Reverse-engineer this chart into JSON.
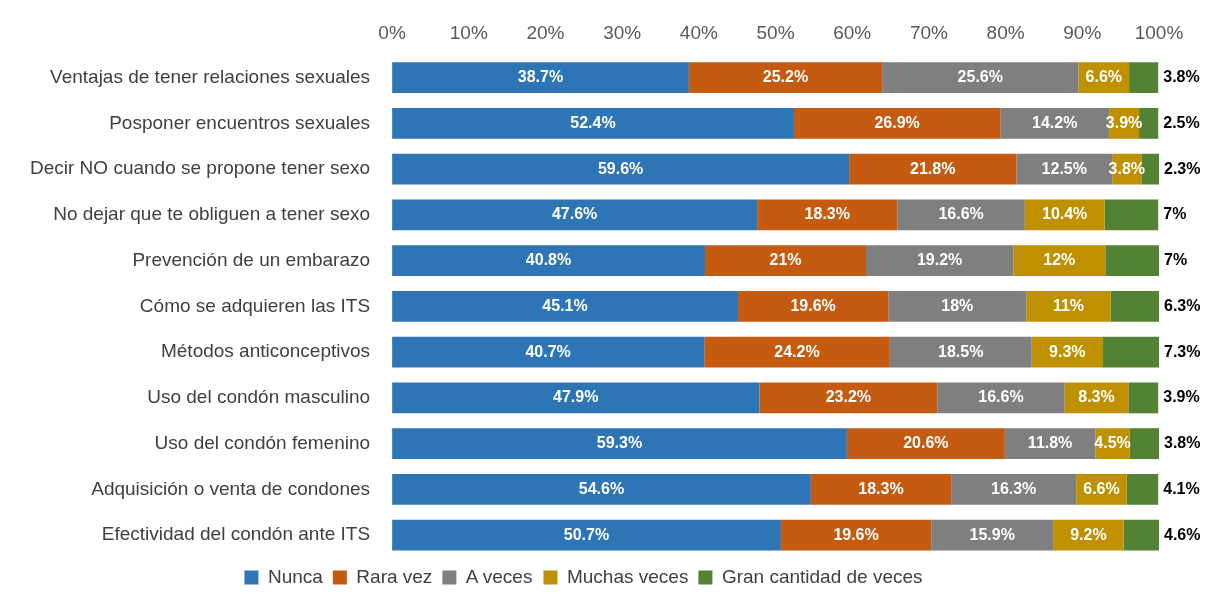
{
  "chart_data": {
    "type": "bar",
    "orientation": "horizontal",
    "stacked": true,
    "categories": [
      "Ventajas de tener relaciones sexuales",
      "Posponer encuentros sexuales",
      "Decir NO cuando se propone tener sexo",
      "No dejar que te obliguen a tener sexo",
      "Prevención de un embarazo",
      "Cómo se adquieren las ITS",
      "Métodos anticonceptivos",
      "Uso del condón masculino",
      "Uso del condón femenino",
      "Adquisición o venta de condones",
      "Efectividad del condón ante ITS"
    ],
    "series": [
      {
        "name": "Nunca",
        "color": "#2e75b6",
        "values": [
          38.7,
          52.4,
          59.6,
          47.6,
          40.8,
          45.1,
          40.7,
          47.9,
          59.3,
          54.6,
          50.7
        ],
        "value_labels": [
          "38.7%",
          "52.4%",
          "59.6%",
          "47.6%",
          "40.8%",
          "45.1%",
          "40.7%",
          "47.9%",
          "59.3%",
          "54.6%",
          "50.7%"
        ]
      },
      {
        "name": "Rara vez",
        "color": "#c55a11",
        "values": [
          25.2,
          26.9,
          21.8,
          18.3,
          21,
          19.6,
          24.2,
          23.2,
          20.6,
          18.3,
          19.6
        ],
        "value_labels": [
          "25.2%",
          "26.9%",
          "21.8%",
          "18.3%",
          "21%",
          "19.6%",
          "24.2%",
          "23.2%",
          "20.6%",
          "18.3%",
          "19.6%"
        ]
      },
      {
        "name": "A veces",
        "color": "#7f7f7f",
        "values": [
          25.6,
          14.2,
          12.5,
          16.6,
          19.2,
          18,
          18.5,
          16.6,
          11.8,
          16.3,
          15.9
        ],
        "value_labels": [
          "25.6%",
          "14.2%",
          "12.5%",
          "16.6%",
          "19.2%",
          "18%",
          "18.5%",
          "16.6%",
          "11.8%",
          "16.3%",
          "15.9%"
        ]
      },
      {
        "name": "Muchas veces",
        "color": "#bf9000",
        "values": [
          6.6,
          3.9,
          3.8,
          10.4,
          12,
          11,
          9.3,
          8.3,
          4.5,
          6.6,
          9.2
        ],
        "value_labels": [
          "6.6%",
          "3.9%",
          "3.8%",
          "10.4%",
          "12%",
          "11%",
          "9.3%",
          "8.3%",
          "4.5%",
          "6.6%",
          "9.2%"
        ]
      },
      {
        "name": "Gran cantidad de veces",
        "color": "#548235",
        "values": [
          3.8,
          2.5,
          2.3,
          7,
          7,
          6.3,
          7.3,
          3.9,
          3.8,
          4.1,
          4.6
        ],
        "value_labels": [
          "3.8%",
          "2.5%",
          "2.3%",
          "7%",
          "7%",
          "6.3%",
          "7.3%",
          "3.9%",
          "3.8%",
          "4.1%",
          "4.6%"
        ]
      }
    ],
    "xlim": [
      0,
      100
    ],
    "xticks": [
      {
        "value": 0,
        "label": "0%"
      },
      {
        "value": 10,
        "label": "10%"
      },
      {
        "value": 20,
        "label": "20%"
      },
      {
        "value": 30,
        "label": "30%"
      },
      {
        "value": 40,
        "label": "40%"
      },
      {
        "value": 50,
        "label": "50%"
      },
      {
        "value": 60,
        "label": "60%"
      },
      {
        "value": 70,
        "label": "70%"
      },
      {
        "value": 80,
        "label": "80%"
      },
      {
        "value": 90,
        "label": "90%"
      },
      {
        "value": 100,
        "label": "100%"
      }
    ],
    "grid": false,
    "legend": "bottom"
  }
}
